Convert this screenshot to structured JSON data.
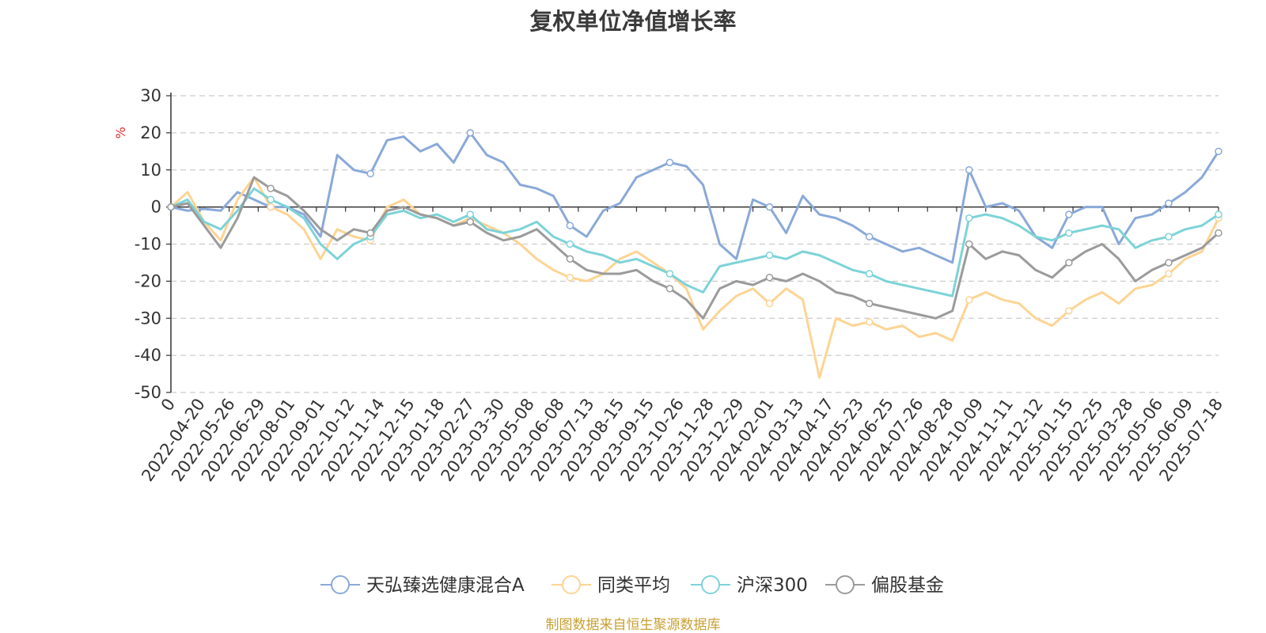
{
  "title": "复权单位净值增长率",
  "footer": "制图数据来自恒生聚源数据库",
  "footer_color": "#c8a032",
  "chart_data": {
    "type": "line",
    "title": "复权单位净值增长率",
    "ylabel": "%",
    "ylabel_color": "#e0312f",
    "ylim": [
      -50,
      30
    ],
    "yticks": [
      30,
      20,
      10,
      0,
      -10,
      -20,
      -30,
      -40,
      -50
    ],
    "grid": true,
    "legend_position": "bottom-center",
    "xtick_labels": [
      "0",
      "2022-04-20",
      "2022-05-26",
      "2022-06-29",
      "2022-08-01",
      "2022-09-01",
      "2022-10-12",
      "2022-11-14",
      "2022-12-15",
      "2023-01-18",
      "2023-02-27",
      "2023-03-30",
      "2023-05-08",
      "2023-06-08",
      "2023-07-13",
      "2023-08-15",
      "2023-09-15",
      "2023-10-26",
      "2023-11-28",
      "2023-12-29",
      "2024-02-01",
      "2024-03-13",
      "2024-04-17",
      "2024-05-23",
      "2024-06-25",
      "2024-07-26",
      "2024-08-28",
      "2024-10-09",
      "2024-11-11",
      "2024-12-12",
      "2025-01-15",
      "2025-02-25",
      "2025-03-28",
      "2025-05-06",
      "2025-06-09",
      "2025-07-18"
    ],
    "series": [
      {
        "name": "天弘臻选健康混合A",
        "color": "#8aa9d8",
        "values": [
          0,
          -1,
          -0.5,
          -1,
          4,
          2,
          0,
          0,
          -2,
          -8,
          14,
          10,
          9,
          18,
          19,
          15,
          17,
          12,
          20,
          14,
          12,
          6,
          5,
          3,
          -5,
          -8,
          -1,
          1,
          8,
          10,
          12,
          11,
          6,
          -10,
          -14,
          2,
          0,
          -7,
          3,
          -2,
          -3,
          -5,
          -8,
          -10,
          -12,
          -11,
          -13,
          -15,
          10,
          0,
          1,
          -1,
          -8,
          -11,
          -2,
          0,
          0,
          -10,
          -3,
          -2,
          1,
          4,
          8,
          15
        ]
      },
      {
        "name": "同类平均",
        "color": "#fdd494",
        "values": [
          0,
          4,
          -4,
          -9,
          2,
          8,
          0,
          -2,
          -6,
          -14,
          -6,
          -8,
          -9,
          0,
          2,
          -2,
          -3,
          -5,
          -3,
          -5,
          -7,
          -10,
          -14,
          -17,
          -19,
          -20,
          -18,
          -14,
          -12,
          -15,
          -18,
          -22,
          -33,
          -28,
          -24,
          -22,
          -26,
          -22,
          -25,
          -46,
          -30,
          -32,
          -31,
          -33,
          -32,
          -35,
          -34,
          -36,
          -25,
          -23,
          -25,
          -26,
          -30,
          -32,
          -28,
          -25,
          -23,
          -26,
          -22,
          -21,
          -18,
          -14,
          -12,
          -3
        ]
      },
      {
        "name": "沪深300",
        "color": "#7dd3d7",
        "values": [
          0,
          2,
          -4,
          -6,
          -1,
          5,
          2,
          0,
          -3,
          -10,
          -14,
          -10,
          -8,
          -2,
          -1,
          -3,
          -2,
          -4,
          -2,
          -6,
          -7,
          -6,
          -4,
          -8,
          -10,
          -12,
          -13,
          -15,
          -14,
          -16,
          -18,
          -21,
          -23,
          -16,
          -15,
          -14,
          -13,
          -14,
          -12,
          -13,
          -15,
          -17,
          -18,
          -20,
          -21,
          -22,
          -23,
          -24,
          -3,
          -2,
          -3,
          -5,
          -8,
          -9,
          -7,
          -6,
          -5,
          -6,
          -11,
          -9,
          -8,
          -6,
          -5,
          -2
        ]
      },
      {
        "name": "偏股基金",
        "color": "#9b9b9b",
        "values": [
          0,
          1,
          -5,
          -11,
          -3,
          8,
          5,
          3,
          -1,
          -6,
          -9,
          -6,
          -7,
          -1,
          0,
          -2,
          -3,
          -5,
          -4,
          -7,
          -9,
          -8,
          -6,
          -10,
          -14,
          -17,
          -18,
          -18,
          -17,
          -20,
          -22,
          -25,
          -30,
          -22,
          -20,
          -21,
          -19,
          -20,
          -18,
          -20,
          -23,
          -24,
          -26,
          -27,
          -28,
          -29,
          -30,
          -28,
          -10,
          -14,
          -12,
          -13,
          -17,
          -19,
          -15,
          -12,
          -10,
          -14,
          -20,
          -17,
          -15,
          -13,
          -11,
          -7
        ]
      }
    ]
  }
}
